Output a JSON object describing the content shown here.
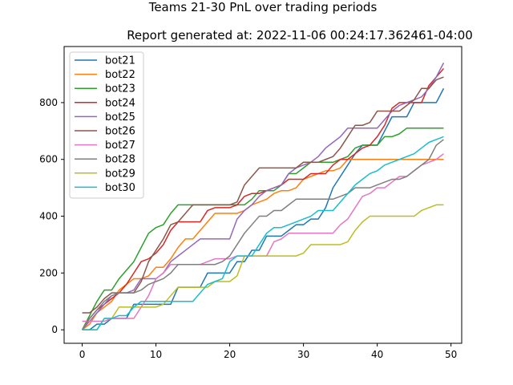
{
  "figure": {
    "suptitle": "Teams 21-30 PnL over trading periods",
    "title": "Report generated at: 2022-11-06 00:24:17.362461-04:00"
  },
  "chart_data": {
    "type": "line",
    "title": "Report generated at: 2022-11-06 00:24:17.362461-04:00",
    "suptitle": "Teams 21-30 PnL over trading periods",
    "xlabel": "",
    "ylabel": "",
    "xlim": [
      -2.45,
      51.45
    ],
    "ylim": [
      -47.5,
      997.5
    ],
    "xticks": [
      0,
      10,
      20,
      30,
      40,
      50
    ],
    "yticks": [
      0,
      200,
      400,
      600,
      800
    ],
    "grid": false,
    "legend": "upper left",
    "x": [
      0,
      1,
      2,
      3,
      4,
      5,
      6,
      7,
      8,
      9,
      10,
      11,
      12,
      13,
      14,
      15,
      16,
      17,
      18,
      19,
      20,
      21,
      22,
      23,
      24,
      25,
      26,
      27,
      28,
      29,
      30,
      31,
      32,
      33,
      34,
      35,
      36,
      37,
      38,
      39,
      40,
      41,
      42,
      43,
      44,
      45,
      46,
      47,
      48,
      49
    ],
    "series": [
      {
        "name": "bot21",
        "color": "#1f77b4",
        "values": [
          0,
          0,
          20,
          20,
          40,
          40,
          40,
          90,
          90,
          90,
          90,
          90,
          90,
          150,
          150,
          150,
          150,
          200,
          200,
          200,
          200,
          240,
          240,
          280,
          280,
          330,
          330,
          330,
          350,
          370,
          370,
          390,
          390,
          430,
          500,
          540,
          580,
          620,
          650,
          650,
          650,
          700,
          750,
          750,
          750,
          800,
          800,
          800,
          800,
          850
        ]
      },
      {
        "name": "bot22",
        "color": "#ff7f0e",
        "values": [
          0,
          20,
          60,
          80,
          100,
          140,
          160,
          180,
          180,
          190,
          220,
          220,
          250,
          290,
          320,
          320,
          350,
          380,
          410,
          410,
          410,
          410,
          420,
          440,
          450,
          460,
          480,
          490,
          490,
          500,
          530,
          540,
          550,
          560,
          560,
          570,
          600,
          600,
          600,
          600,
          600,
          600,
          600,
          600,
          600,
          600,
          600,
          600,
          600,
          600
        ]
      },
      {
        "name": "bot23",
        "color": "#2ca02c",
        "values": [
          0,
          50,
          100,
          140,
          140,
          180,
          210,
          240,
          290,
          340,
          360,
          370,
          410,
          440,
          440,
          440,
          440,
          440,
          440,
          440,
          440,
          440,
          440,
          460,
          490,
          490,
          490,
          510,
          550,
          550,
          570,
          590,
          590,
          590,
          590,
          600,
          610,
          640,
          650,
          650,
          650,
          680,
          680,
          690,
          710,
          710,
          710,
          710,
          710,
          710
        ]
      },
      {
        "name": "bot24",
        "color": "#d62728",
        "values": [
          0,
          40,
          70,
          90,
          110,
          130,
          160,
          200,
          240,
          250,
          270,
          300,
          350,
          380,
          380,
          380,
          380,
          420,
          430,
          430,
          430,
          440,
          470,
          480,
          480,
          490,
          500,
          510,
          530,
          530,
          530,
          550,
          550,
          550,
          580,
          600,
          600,
          620,
          640,
          650,
          680,
          720,
          780,
          800,
          800,
          800,
          800,
          860,
          890,
          920
        ]
      },
      {
        "name": "bot25",
        "color": "#9467bd",
        "values": [
          0,
          30,
          60,
          90,
          120,
          130,
          130,
          140,
          180,
          180,
          180,
          200,
          240,
          260,
          280,
          300,
          320,
          320,
          320,
          320,
          320,
          390,
          420,
          440,
          470,
          490,
          500,
          510,
          550,
          570,
          580,
          590,
          610,
          640,
          660,
          680,
          710,
          710,
          710,
          710,
          710,
          740,
          770,
          790,
          800,
          810,
          820,
          850,
          890,
          940
        ]
      },
      {
        "name": "bot26",
        "color": "#8c564b",
        "values": [
          60,
          60,
          80,
          110,
          130,
          130,
          130,
          130,
          170,
          240,
          280,
          320,
          370,
          380,
          410,
          440,
          440,
          440,
          440,
          440,
          440,
          450,
          510,
          540,
          570,
          570,
          570,
          570,
          570,
          570,
          590,
          590,
          590,
          600,
          610,
          640,
          680,
          720,
          720,
          730,
          770,
          770,
          770,
          770,
          790,
          810,
          850,
          850,
          880,
          890
        ]
      },
      {
        "name": "bot27",
        "color": "#e377c2",
        "values": [
          30,
          30,
          30,
          30,
          40,
          40,
          40,
          40,
          80,
          120,
          180,
          200,
          230,
          230,
          230,
          230,
          230,
          240,
          250,
          250,
          250,
          260,
          260,
          260,
          260,
          260,
          310,
          320,
          340,
          340,
          340,
          340,
          340,
          340,
          340,
          370,
          390,
          430,
          470,
          480,
          500,
          500,
          520,
          540,
          540,
          560,
          580,
          590,
          600,
          620
        ]
      },
      {
        "name": "bot28",
        "color": "#7f7f7f",
        "values": [
          0,
          40,
          70,
          100,
          120,
          130,
          130,
          130,
          140,
          160,
          170,
          180,
          200,
          230,
          230,
          230,
          230,
          230,
          230,
          240,
          260,
          300,
          340,
          370,
          400,
          400,
          420,
          420,
          440,
          460,
          460,
          460,
          460,
          460,
          460,
          470,
          480,
          500,
          500,
          500,
          510,
          520,
          530,
          530,
          540,
          560,
          580,
          600,
          650,
          670
        ]
      },
      {
        "name": "bot29",
        "color": "#bcbd22",
        "values": [
          0,
          0,
          0,
          40,
          40,
          80,
          80,
          80,
          80,
          80,
          80,
          90,
          120,
          150,
          150,
          150,
          150,
          150,
          170,
          170,
          170,
          190,
          260,
          260,
          260,
          260,
          260,
          260,
          260,
          260,
          270,
          300,
          300,
          300,
          300,
          300,
          310,
          350,
          380,
          400,
          400,
          400,
          400,
          400,
          400,
          400,
          420,
          430,
          440,
          440
        ]
      },
      {
        "name": "bot30",
        "color": "#17becf",
        "values": [
          0,
          0,
          0,
          40,
          40,
          50,
          50,
          80,
          100,
          100,
          100,
          100,
          100,
          100,
          100,
          100,
          130,
          160,
          170,
          180,
          240,
          260,
          260,
          260,
          300,
          340,
          360,
          360,
          370,
          380,
          390,
          400,
          420,
          420,
          420,
          450,
          480,
          510,
          530,
          550,
          560,
          580,
          590,
          600,
          610,
          620,
          640,
          660,
          670,
          680
        ]
      }
    ]
  }
}
